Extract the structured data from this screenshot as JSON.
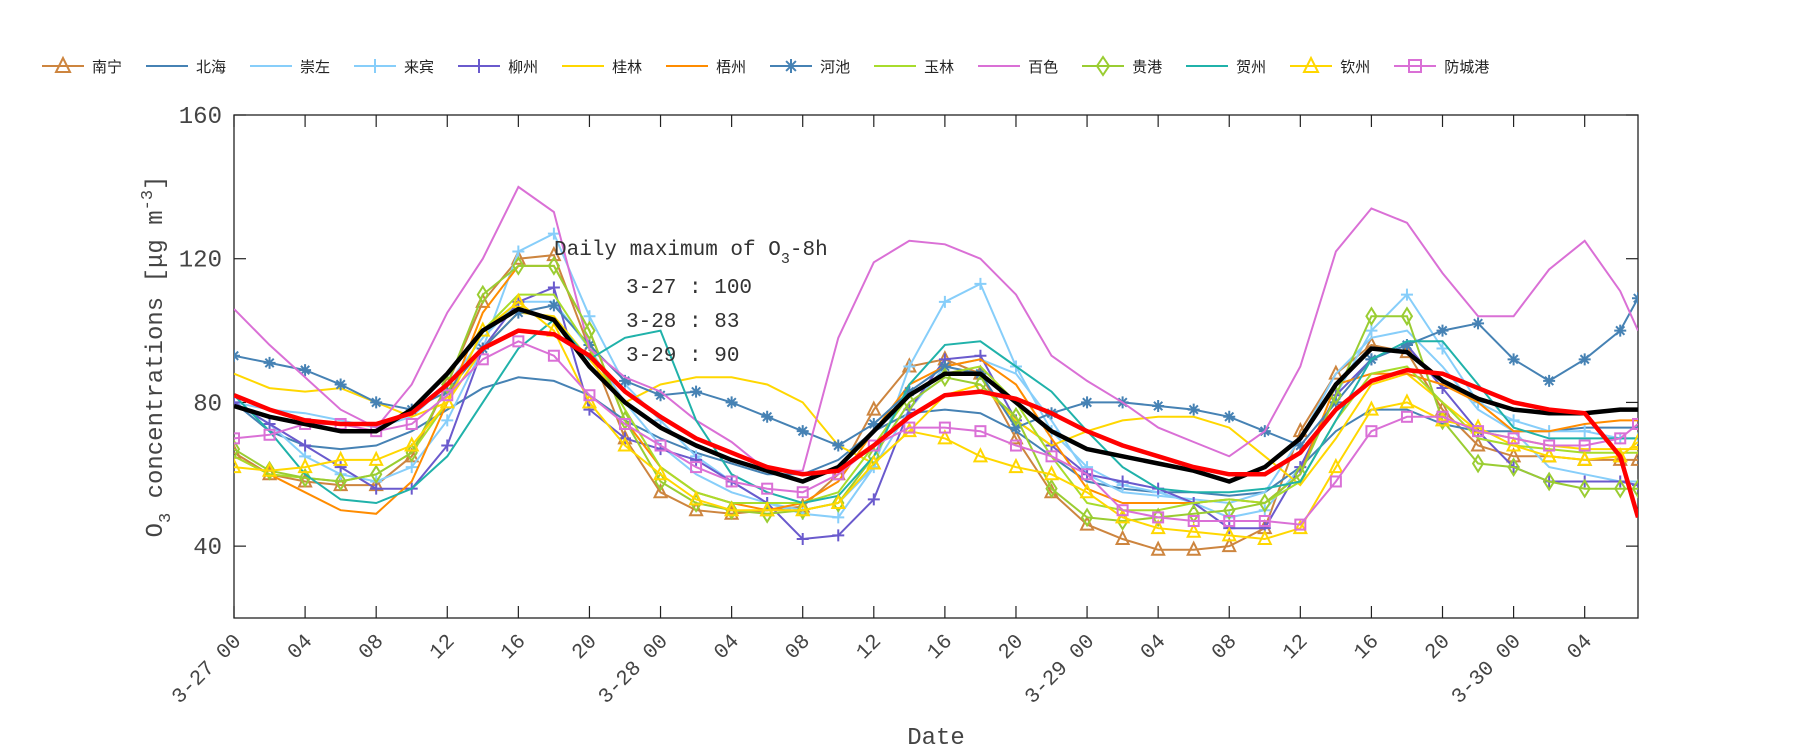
{
  "chart_data": {
    "type": "line",
    "xlabel": "Date",
    "ylabel": {
      "prefix": "O",
      "sub": "3",
      "middle": " concentrations [",
      "mu": "μ",
      "unit": "g m",
      "sup": "-3",
      "suffix": "]"
    },
    "ylim": [
      20,
      160
    ],
    "yticks": [
      40,
      80,
      120,
      160
    ],
    "x_hours": [
      0,
      2,
      4,
      6,
      8,
      10,
      12,
      14,
      16,
      18,
      20,
      22,
      24,
      26,
      28,
      30,
      32,
      34,
      36,
      38,
      40,
      42,
      44,
      46,
      48,
      50,
      52,
      54,
      56,
      58,
      60,
      62,
      64,
      66,
      68,
      70,
      72,
      74,
      76,
      78,
      79
    ],
    "xlim_hours": [
      0,
      79
    ],
    "xticks": [
      {
        "hour": 0,
        "label": "3-27 00"
      },
      {
        "hour": 4,
        "label": "04"
      },
      {
        "hour": 8,
        "label": "08"
      },
      {
        "hour": 12,
        "label": "12"
      },
      {
        "hour": 16,
        "label": "16"
      },
      {
        "hour": 20,
        "label": "20"
      },
      {
        "hour": 24,
        "label": "3-28 00"
      },
      {
        "hour": 28,
        "label": "04"
      },
      {
        "hour": 32,
        "label": "08"
      },
      {
        "hour": 36,
        "label": "12"
      },
      {
        "hour": 40,
        "label": "16"
      },
      {
        "hour": 44,
        "label": "20"
      },
      {
        "hour": 48,
        "label": "3-29 00"
      },
      {
        "hour": 52,
        "label": "04"
      },
      {
        "hour": 56,
        "label": "08"
      },
      {
        "hour": 60,
        "label": "12"
      },
      {
        "hour": 64,
        "label": "16"
      },
      {
        "hour": 68,
        "label": "20"
      },
      {
        "hour": 72,
        "label": "3-30 00"
      },
      {
        "hour": 76,
        "label": "04"
      }
    ],
    "grid": false,
    "legend_position": "top",
    "series": [
      {
        "name": "南宁",
        "color": "#CD853F",
        "marker": "triangle",
        "values": [
          66,
          60,
          58,
          57,
          57,
          65,
          85,
          108,
          120,
          121,
          95,
          70,
          55,
          50,
          49,
          50,
          51,
          60,
          78,
          90,
          92,
          88,
          70,
          55,
          46,
          42,
          39,
          39,
          40,
          45,
          72,
          88,
          96,
          94,
          78,
          68,
          65,
          65,
          64,
          64,
          64
        ]
      },
      {
        "name": "北海",
        "color": "#4682B4",
        "marker": "none",
        "values": [
          80,
          72,
          68,
          67,
          68,
          72,
          78,
          84,
          87,
          86,
          82,
          75,
          70,
          66,
          63,
          60,
          60,
          64,
          72,
          77,
          78,
          77,
          72,
          65,
          58,
          56,
          55,
          55,
          54,
          55,
          62,
          72,
          78,
          78,
          74,
          72,
          72,
          72,
          73,
          73,
          73
        ]
      },
      {
        "name": "崇左",
        "color": "#87CEFA",
        "marker": "none",
        "values": [
          80,
          78,
          77,
          75,
          73,
          76,
          85,
          98,
          108,
          108,
          95,
          80,
          68,
          60,
          55,
          52,
          50,
          52,
          62,
          78,
          90,
          92,
          88,
          75,
          60,
          55,
          54,
          53,
          52,
          55,
          70,
          88,
          98,
          100,
          90,
          78,
          72,
          62,
          60,
          58,
          58
        ]
      },
      {
        "name": "来宾",
        "color": "#87CEFA",
        "marker": "plus",
        "values": [
          80,
          74,
          65,
          60,
          58,
          62,
          75,
          95,
          122,
          127,
          104,
          85,
          75,
          65,
          58,
          52,
          49,
          48,
          62,
          90,
          108,
          113,
          90,
          72,
          62,
          57,
          55,
          52,
          48,
          50,
          62,
          82,
          100,
          110,
          95,
          80,
          75,
          72,
          72,
          70,
          70
        ]
      },
      {
        "name": "柳州",
        "color": "#6A5ACD",
        "marker": "plus",
        "values": [
          80,
          74,
          68,
          62,
          56,
          56,
          68,
          95,
          108,
          112,
          78,
          70,
          67,
          64,
          58,
          52,
          42,
          43,
          53,
          78,
          92,
          93,
          75,
          68,
          60,
          58,
          56,
          52,
          45,
          45,
          62,
          82,
          92,
          96,
          84,
          72,
          62,
          58,
          58,
          58,
          57
        ]
      },
      {
        "name": "桂林",
        "color": "#FFD700",
        "marker": "none",
        "values": [
          88,
          84,
          83,
          84,
          80,
          76,
          80,
          95,
          105,
          104,
          92,
          80,
          85,
          87,
          87,
          85,
          80,
          68,
          63,
          72,
          82,
          85,
          75,
          68,
          72,
          75,
          76,
          76,
          73,
          65,
          57,
          70,
          85,
          88,
          80,
          72,
          70,
          68,
          67,
          67,
          67
        ]
      },
      {
        "name": "梧州",
        "color": "#FF8C00",
        "marker": "none",
        "values": [
          65,
          60,
          55,
          50,
          49,
          58,
          80,
          105,
          118,
          118,
          100,
          75,
          62,
          55,
          52,
          50,
          52,
          58,
          72,
          85,
          90,
          92,
          85,
          70,
          56,
          52,
          52,
          52,
          53,
          52,
          60,
          85,
          88,
          88,
          85,
          80,
          72,
          72,
          74,
          75,
          75
        ]
      },
      {
        "name": "河池",
        "color": "#4682B4",
        "marker": "asterisk",
        "values": [
          93,
          91,
          89,
          85,
          80,
          78,
          83,
          95,
          105,
          107,
          96,
          86,
          82,
          83,
          80,
          76,
          72,
          68,
          74,
          83,
          90,
          88,
          73,
          77,
          80,
          80,
          79,
          78,
          76,
          72,
          68,
          80,
          92,
          96,
          100,
          102,
          92,
          86,
          92,
          100,
          109
        ]
      },
      {
        "name": "玉林",
        "color": "#A8DC2C",
        "marker": "none",
        "values": [
          65,
          60,
          59,
          58,
          60,
          66,
          80,
          100,
          110,
          110,
          95,
          78,
          62,
          55,
          52,
          52,
          52,
          55,
          68,
          82,
          88,
          90,
          80,
          65,
          52,
          50,
          50,
          52,
          53,
          52,
          58,
          75,
          88,
          90,
          80,
          70,
          68,
          67,
          66,
          66,
          66
        ]
      },
      {
        "name": "百色",
        "color": "#DA70D6",
        "marker": "none",
        "values": [
          106,
          96,
          87,
          78,
          73,
          85,
          105,
          120,
          140,
          133,
          95,
          87,
          83,
          75,
          69,
          61,
          61,
          98,
          119,
          125,
          124,
          120,
          110,
          93,
          86,
          80,
          73,
          69,
          65,
          72,
          90,
          122,
          134,
          130,
          116,
          104,
          104,
          117,
          125,
          111,
          100
        ]
      },
      {
        "name": "贵港",
        "color": "#9ACD32",
        "marker": "diamond",
        "values": [
          67,
          61,
          59,
          58,
          60,
          66,
          85,
          110,
          118,
          118,
          100,
          75,
          58,
          52,
          50,
          49,
          50,
          52,
          65,
          80,
          87,
          85,
          76,
          56,
          48,
          47,
          48,
          49,
          50,
          52,
          60,
          82,
          104,
          104,
          75,
          63,
          62,
          58,
          56,
          56,
          56
        ]
      },
      {
        "name": "贺州",
        "color": "#20B2AA",
        "marker": "none",
        "values": [
          82,
          72,
          60,
          53,
          52,
          56,
          65,
          80,
          95,
          103,
          92,
          98,
          100,
          75,
          60,
          55,
          52,
          54,
          65,
          85,
          96,
          97,
          90,
          83,
          72,
          62,
          56,
          55,
          55,
          56,
          58,
          75,
          92,
          97,
          97,
          85,
          73,
          70,
          70,
          70,
          70
        ]
      },
      {
        "name": "钦州",
        "color": "#FFD700",
        "marker": "triangle",
        "values": [
          62,
          61,
          62,
          64,
          64,
          68,
          80,
          100,
          108,
          100,
          80,
          68,
          60,
          53,
          50,
          50,
          50,
          52,
          63,
          72,
          70,
          65,
          62,
          60,
          55,
          48,
          45,
          44,
          43,
          42,
          45,
          62,
          78,
          80,
          75,
          73,
          68,
          65,
          64,
          65,
          69
        ]
      },
      {
        "name": "防城港",
        "color": "#DA70D6",
        "marker": "square",
        "values": [
          70,
          71,
          74,
          74,
          72,
          74,
          82,
          92,
          97,
          93,
          82,
          74,
          68,
          62,
          58,
          56,
          55,
          60,
          68,
          73,
          73,
          72,
          68,
          65,
          60,
          50,
          48,
          47,
          47,
          47,
          46,
          58,
          72,
          76,
          76,
          72,
          70,
          68,
          68,
          70,
          74
        ]
      }
    ],
    "extra_lines": [
      {
        "color": "#000000",
        "values": [
          79,
          76,
          74,
          72,
          72,
          78,
          88,
          100,
          106,
          103,
          90,
          80,
          73,
          68,
          64,
          61,
          58,
          62,
          72,
          82,
          88,
          88,
          80,
          72,
          67,
          65,
          63,
          61,
          58,
          62,
          70,
          85,
          95,
          94,
          86,
          81,
          78,
          77,
          77,
          78,
          78
        ]
      },
      {
        "color": "#FF0000",
        "values": [
          82,
          78,
          75,
          74,
          74,
          77,
          85,
          95,
          100,
          99,
          93,
          83,
          76,
          70,
          66,
          62,
          60,
          61,
          68,
          76,
          82,
          83,
          81,
          77,
          72,
          68,
          65,
          62,
          60,
          60,
          66,
          78,
          86,
          89,
          88,
          84,
          80,
          78,
          77,
          65,
          48
        ]
      }
    ],
    "annotation": {
      "title_prefix": "Daily maximum of O",
      "title_sub": "3",
      "title_suffix": "-8h",
      "lines": [
        "3-27 : 100",
        "3-28 : 83",
        "3-29 : 90"
      ]
    }
  }
}
